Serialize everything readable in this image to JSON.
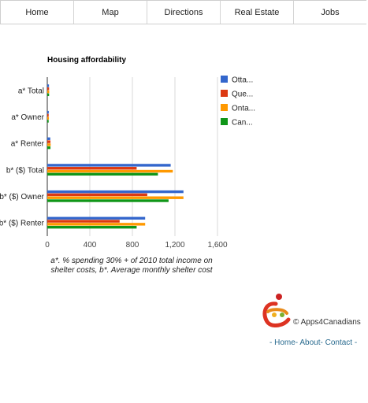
{
  "nav": {
    "tabs": [
      "Home",
      "Map",
      "Directions",
      "Real Estate",
      "Jobs"
    ]
  },
  "chart_data": {
    "type": "bar",
    "orientation": "horizontal",
    "title": "Housing affordability",
    "categories": [
      "a* Total",
      "a* Owner",
      "a* Renter",
      "b* ($) Total",
      "b* ($) Owner",
      "b* ($) Renter"
    ],
    "series": [
      {
        "name": "Otta...",
        "color": "#3366cc",
        "values": [
          16,
          14,
          28,
          1160,
          1280,
          920
        ]
      },
      {
        "name": "Que...",
        "color": "#dc3912",
        "values": [
          17,
          13,
          30,
          840,
          940,
          680
        ]
      },
      {
        "name": "Onta...",
        "color": "#ff9900",
        "values": [
          18,
          15,
          32,
          1180,
          1280,
          920
        ]
      },
      {
        "name": "Can...",
        "color": "#109618",
        "values": [
          17,
          13,
          30,
          1040,
          1140,
          840
        ]
      }
    ],
    "xlim": [
      0,
      1600
    ],
    "xticks": [
      "0",
      "400",
      "800",
      "1,200",
      "1,600"
    ],
    "grid": true,
    "legend_position": "right"
  },
  "caption": "a*. % spending 30% + of 2010 total income on shelter costs, b*. Average monthly shelter cost",
  "footer": {
    "copyright": "© Apps4Canadians",
    "links": [
      "- Home",
      "- About",
      "- Contact -"
    ]
  }
}
